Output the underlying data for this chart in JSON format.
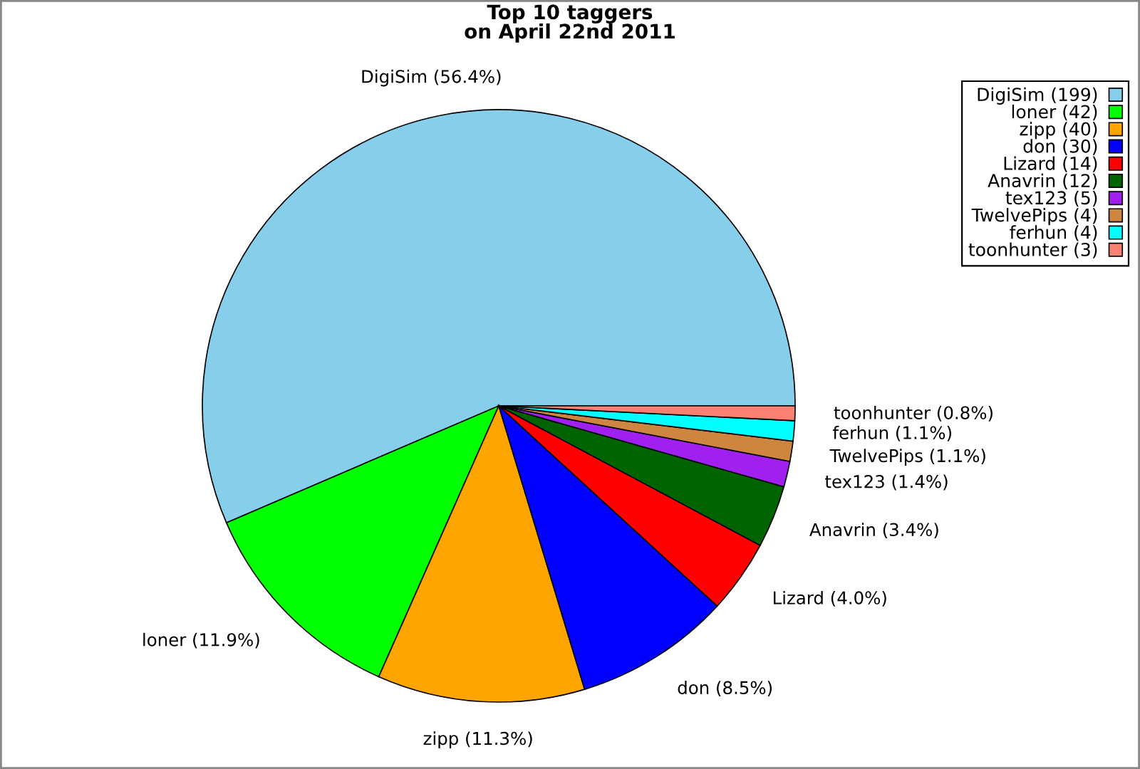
{
  "chart_data": {
    "type": "pie",
    "title": "Top 10 taggers\non April 22nd 2011",
    "categories": [
      "DigiSim (199)",
      "loner (42)",
      "zipp (40)",
      "don (30)",
      "Lizard (14)",
      "Anavrin (12)",
      "tex123 (5)",
      "TwelvePips (4)",
      "ferhun (4)",
      "toonhunter (3)"
    ],
    "values": [
      56.4,
      11.9,
      11.3,
      8.5,
      4.0,
      3.4,
      1.4,
      1.1,
      1.1,
      0.8
    ],
    "colors": [
      "#87ceeb",
      "#00ff00",
      "#ffa500",
      "#0000ff",
      "#ff0000",
      "#006400",
      "#a020f0",
      "#cd853f",
      "#00ffff",
      "#fa8072"
    ],
    "value_labels": [
      "DigiSim (56.4%)",
      "loner (11.9%)",
      "zipp (11.3%)",
      "don (8.5%)",
      "Lizard (4.0%)",
      "Anavrin (3.4%)",
      "tex123 (1.4%)",
      "TwelvePips (1.1%)",
      "ferhun (1.1%)",
      "toonhunter (0.8%)"
    ],
    "legend": "top right"
  }
}
